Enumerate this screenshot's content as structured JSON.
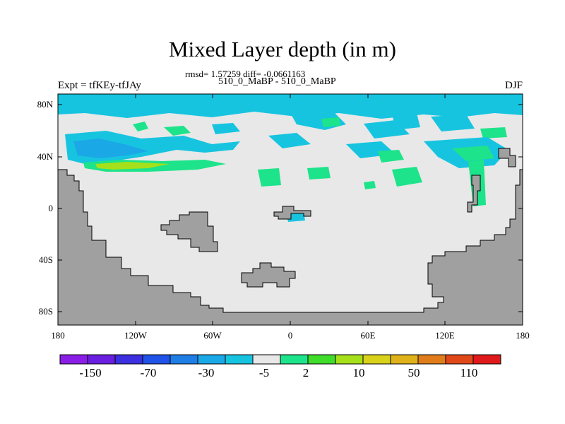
{
  "title": "Mixed Layer depth (in m)",
  "stats": "rmsd= 1.57259 diff= -0.0661163",
  "periods": "510_0_MaBP - 510_0_MaBP",
  "expt": "Expt = tfKEy-tfJAy",
  "season": "DJF",
  "lat_labels": [
    "80N",
    "40N",
    "0",
    "40S",
    "80S"
  ],
  "lon_labels": [
    "180",
    "120W",
    "60W",
    "0",
    "60E",
    "120E",
    "180"
  ],
  "colorbar": {
    "labels": [
      "-150",
      "-70",
      "-30",
      "-5",
      "2",
      "10",
      "50",
      "110"
    ],
    "colors": [
      "#8a1ee6",
      "#6a1fe0",
      "#3b2fe0",
      "#1f52e6",
      "#1f7de6",
      "#1aa8e6",
      "#17c4e0",
      "#e8e8e8",
      "#1de38a",
      "#3fdc2a",
      "#a6e01a",
      "#d8d21a",
      "#e0b21a",
      "#e07d1a",
      "#e0481a",
      "#e01a1a"
    ]
  },
  "colors": {
    "land": "#a0a0a0",
    "ocean_neutral": "#e8e8e8",
    "cyan": "#17c4e0",
    "blue": "#1aa8e6",
    "green": "#1de38a",
    "lime": "#a6e01a"
  }
}
